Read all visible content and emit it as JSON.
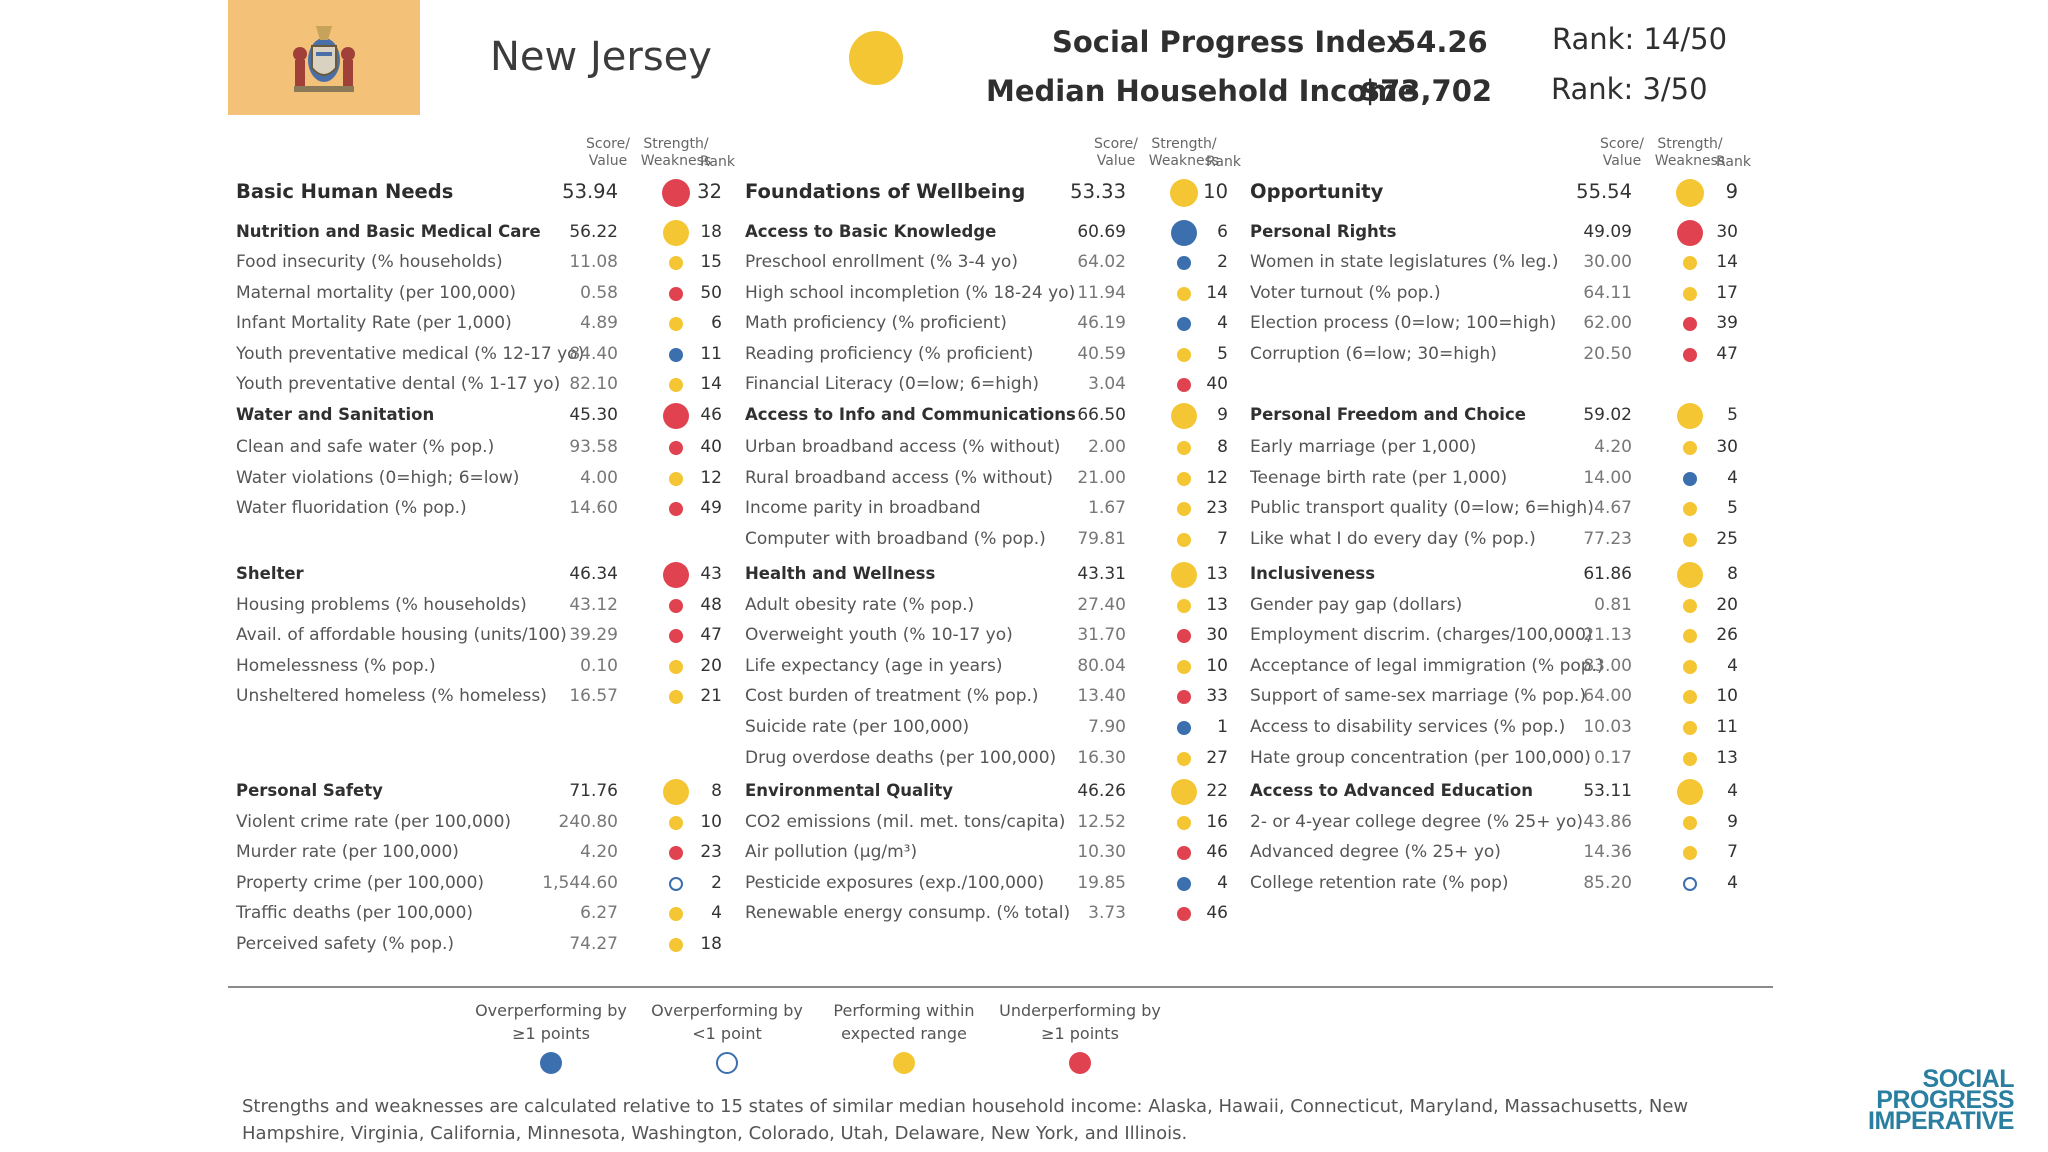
{
  "colors": {
    "blue": "#3c6fae",
    "yellow": "#f4c633",
    "red": "#e0424f",
    "hollow": "#3c6fae",
    "flag_bg": "#f3c178"
  },
  "header": {
    "state": "New Jersey",
    "summary_dot": "yellow",
    "spi_label": "Social Progress Index",
    "spi_value": "54.26",
    "spi_rank": "Rank: 14/50",
    "income_label": "Median Household Income",
    "income_value": "$73,702",
    "income_rank": "Rank: 3/50",
    "flag_icon": "new-jersey-seal-icon"
  },
  "column_headers": {
    "score": "Score/\nValue",
    "strength": "Strength/\nWeakness",
    "rank": "Rank"
  },
  "columns": [
    {
      "rows": [
        {
          "t": "dim",
          "label": "Basic Human Needs",
          "value": "53.94",
          "dot": "red",
          "rank": "32"
        },
        {
          "t": "cat",
          "label": "Nutrition and Basic Medical Care",
          "value": "56.22",
          "dot": "yellow",
          "rank": "18"
        },
        {
          "t": "ind",
          "label": "Food insecurity (% households)",
          "value": "11.08",
          "dot": "yellow",
          "rank": "15"
        },
        {
          "t": "ind",
          "label": "Maternal mortality (per 100,000)",
          "value": "0.58",
          "dot": "red",
          "rank": "50"
        },
        {
          "t": "ind",
          "label": "Infant Mortality Rate (per 1,000)",
          "value": "4.89",
          "dot": "yellow",
          "rank": "6"
        },
        {
          "t": "ind",
          "label": "Youth preventative medical (% 12-17 yo)",
          "value": "84.40",
          "dot": "blue",
          "rank": "11"
        },
        {
          "t": "ind",
          "label": "Youth preventative dental (% 1-17 yo)",
          "value": "82.10",
          "dot": "yellow",
          "rank": "14"
        },
        {
          "t": "cat",
          "label": "Water and Sanitation",
          "value": "45.30",
          "dot": "red",
          "rank": "46"
        },
        {
          "t": "ind",
          "label": "Clean and safe water (% pop.)",
          "value": "93.58",
          "dot": "red",
          "rank": "40"
        },
        {
          "t": "ind",
          "label": "Water violations (0=high; 6=low)",
          "value": "4.00",
          "dot": "yellow",
          "rank": "12"
        },
        {
          "t": "ind",
          "label": "Water fluoridation (% pop.)",
          "value": "14.60",
          "dot": "red",
          "rank": "49"
        },
        {
          "t": "cat",
          "label": "Shelter",
          "value": "46.34",
          "dot": "red",
          "rank": "43"
        },
        {
          "t": "ind",
          "label": "Housing problems (% households)",
          "value": "43.12",
          "dot": "red",
          "rank": "48"
        },
        {
          "t": "ind",
          "label": "Avail. of affordable housing (units/100)",
          "value": "39.29",
          "dot": "red",
          "rank": "47"
        },
        {
          "t": "ind",
          "label": "Homelessness (% pop.)",
          "value": "0.10",
          "dot": "yellow",
          "rank": "20"
        },
        {
          "t": "ind",
          "label": "Unsheltered homeless (% homeless)",
          "value": "16.57",
          "dot": "yellow",
          "rank": "21"
        },
        {
          "t": "cat",
          "label": "Personal Safety",
          "value": "71.76",
          "dot": "yellow",
          "rank": "8"
        },
        {
          "t": "ind",
          "label": "Violent crime rate (per 100,000)",
          "value": "240.80",
          "dot": "yellow",
          "rank": "10"
        },
        {
          "t": "ind",
          "label": "Murder rate (per 100,000)",
          "value": "4.20",
          "dot": "red",
          "rank": "23"
        },
        {
          "t": "ind",
          "label": "Property crime (per 100,000)",
          "value": "1,544.60",
          "dot": "hollow",
          "rank": "2"
        },
        {
          "t": "ind",
          "label": "Traffic deaths (per 100,000)",
          "value": "6.27",
          "dot": "yellow",
          "rank": "4"
        },
        {
          "t": "ind",
          "label": "Perceived safety (% pop.)",
          "value": "74.27",
          "dot": "yellow",
          "rank": "18"
        }
      ]
    },
    {
      "rows": [
        {
          "t": "dim",
          "label": "Foundations of Wellbeing",
          "value": "53.33",
          "dot": "yellow",
          "rank": "10"
        },
        {
          "t": "cat",
          "label": "Access to Basic Knowledge",
          "value": "60.69",
          "dot": "blue",
          "rank": "6"
        },
        {
          "t": "ind",
          "label": "Preschool enrollment (% 3-4 yo)",
          "value": "64.02",
          "dot": "blue",
          "rank": "2"
        },
        {
          "t": "ind",
          "label": "High school incompletion (% 18-24 yo)",
          "value": "11.94",
          "dot": "yellow",
          "rank": "14"
        },
        {
          "t": "ind",
          "label": "Math proficiency (% proficient)",
          "value": "46.19",
          "dot": "blue",
          "rank": "4"
        },
        {
          "t": "ind",
          "label": "Reading proficiency (% proficient)",
          "value": "40.59",
          "dot": "yellow",
          "rank": "5"
        },
        {
          "t": "ind",
          "label": "Financial Literacy (0=low; 6=high)",
          "value": "3.04",
          "dot": "red",
          "rank": "40"
        },
        {
          "t": "cat",
          "label": "Access to Info and Communications",
          "value": "66.50",
          "dot": "yellow",
          "rank": "9"
        },
        {
          "t": "ind",
          "label": "Urban broadband access (% without)",
          "value": "2.00",
          "dot": "yellow",
          "rank": "8"
        },
        {
          "t": "ind",
          "label": "Rural broadband access (% without)",
          "value": "21.00",
          "dot": "yellow",
          "rank": "12"
        },
        {
          "t": "ind",
          "label": "Income parity in broadband",
          "value": "1.67",
          "dot": "yellow",
          "rank": "23"
        },
        {
          "t": "ind",
          "label": "Computer with broadband (% pop.)",
          "value": "79.81",
          "dot": "yellow",
          "rank": "7"
        },
        {
          "t": "cat",
          "label": "Health and Wellness",
          "value": "43.31",
          "dot": "yellow",
          "rank": "13"
        },
        {
          "t": "ind",
          "label": "Adult obesity rate (% pop.)",
          "value": "27.40",
          "dot": "yellow",
          "rank": "13"
        },
        {
          "t": "ind",
          "label": "Overweight youth (% 10-17 yo)",
          "value": "31.70",
          "dot": "red",
          "rank": "30"
        },
        {
          "t": "ind",
          "label": "Life expectancy (age in years)",
          "value": "80.04",
          "dot": "yellow",
          "rank": "10"
        },
        {
          "t": "ind",
          "label": "Cost burden of treatment (% pop.)",
          "value": "13.40",
          "dot": "red",
          "rank": "33"
        },
        {
          "t": "ind",
          "label": "Suicide rate (per 100,000)",
          "value": "7.90",
          "dot": "blue",
          "rank": "1"
        },
        {
          "t": "ind",
          "label": "Drug overdose deaths (per 100,000)",
          "value": "16.30",
          "dot": "yellow",
          "rank": "27"
        },
        {
          "t": "cat",
          "label": "Environmental Quality",
          "value": "46.26",
          "dot": "yellow",
          "rank": "22"
        },
        {
          "t": "ind",
          "label": "CO2 emissions (mil. met. tons/capita)",
          "value": "12.52",
          "dot": "yellow",
          "rank": "16"
        },
        {
          "t": "ind",
          "label": "Air pollution (µg/m³)",
          "value": "10.30",
          "dot": "red",
          "rank": "46"
        },
        {
          "t": "ind",
          "label": "Pesticide exposures (exp./100,000)",
          "value": "19.85",
          "dot": "blue",
          "rank": "4"
        },
        {
          "t": "ind",
          "label": "Renewable energy consump. (% total)",
          "value": "3.73",
          "dot": "red",
          "rank": "46"
        }
      ]
    },
    {
      "rows": [
        {
          "t": "dim",
          "label": "Opportunity",
          "value": "55.54",
          "dot": "yellow",
          "rank": "9"
        },
        {
          "t": "cat",
          "label": "Personal Rights",
          "value": "49.09",
          "dot": "red",
          "rank": "30"
        },
        {
          "t": "ind",
          "label": "Women in state legislatures (% leg.)",
          "value": "30.00",
          "dot": "yellow",
          "rank": "14"
        },
        {
          "t": "ind",
          "label": "Voter turnout (% pop.)",
          "value": "64.11",
          "dot": "yellow",
          "rank": "17"
        },
        {
          "t": "ind",
          "label": "Election process (0=low; 100=high)",
          "value": "62.00",
          "dot": "red",
          "rank": "39"
        },
        {
          "t": "ind",
          "label": "Corruption (6=low; 30=high)",
          "value": "20.50",
          "dot": "red",
          "rank": "47"
        },
        {
          "t": "cat",
          "label": "Personal Freedom and Choice",
          "value": "59.02",
          "dot": "yellow",
          "rank": "5"
        },
        {
          "t": "ind",
          "label": "Early marriage (per 1,000)",
          "value": "4.20",
          "dot": "yellow",
          "rank": "30"
        },
        {
          "t": "ind",
          "label": "Teenage birth rate (per 1,000)",
          "value": "14.00",
          "dot": "blue",
          "rank": "4"
        },
        {
          "t": "ind",
          "label": "Public transport quality (0=low; 6=high)",
          "value": "4.67",
          "dot": "yellow",
          "rank": "5"
        },
        {
          "t": "ind",
          "label": "Like what I do every day (% pop.)",
          "value": "77.23",
          "dot": "yellow",
          "rank": "25"
        },
        {
          "t": "cat",
          "label": "Inclusiveness",
          "value": "61.86",
          "dot": "yellow",
          "rank": "8"
        },
        {
          "t": "ind",
          "label": "Gender pay gap (dollars)",
          "value": "0.81",
          "dot": "yellow",
          "rank": "20"
        },
        {
          "t": "ind",
          "label": "Employment discrim. (charges/100,000)",
          "value": "21.13",
          "dot": "yellow",
          "rank": "26"
        },
        {
          "t": "ind",
          "label": "Acceptance of legal immigration (% pop.)",
          "value": "83.00",
          "dot": "yellow",
          "rank": "4"
        },
        {
          "t": "ind",
          "label": "Support of same-sex marriage (% pop.)",
          "value": "64.00",
          "dot": "yellow",
          "rank": "10"
        },
        {
          "t": "ind",
          "label": "Access to disability services (% pop.)",
          "value": "10.03",
          "dot": "yellow",
          "rank": "11"
        },
        {
          "t": "ind",
          "label": "Hate group concentration (per 100,000)",
          "value": "0.17",
          "dot": "yellow",
          "rank": "13"
        },
        {
          "t": "cat",
          "label": "Access to Advanced Education",
          "value": "53.11",
          "dot": "yellow",
          "rank": "4"
        },
        {
          "t": "ind",
          "label": "2- or 4-year college degree (% 25+ yo)",
          "value": "43.86",
          "dot": "yellow",
          "rank": "9"
        },
        {
          "t": "ind",
          "label": "Advanced degree (% 25+ yo)",
          "value": "14.36",
          "dot": "yellow",
          "rank": "7"
        },
        {
          "t": "ind",
          "label": "College retention rate (% pop)",
          "value": "85.20",
          "dot": "hollow",
          "rank": "4"
        }
      ]
    }
  ],
  "legend": [
    {
      "label": "Overperforming by\n≥1 points",
      "dot": "blue"
    },
    {
      "label": "Overperforming by\n<1 point",
      "dot": "hollow"
    },
    {
      "label": "Performing within\nexpected range",
      "dot": "yellow"
    },
    {
      "label": "Underperforming by\n≥1 points",
      "dot": "red"
    }
  ],
  "footnote": "Strengths and weaknesses are calculated relative to 15 states of similar median household income: Alaska, Hawaii, Connecticut, Maryland, Massachusetts, New Hampshire, Virginia, California, Minnesota, Washington, Colorado, Utah, Delaware, New York, and Illinois.",
  "logo": [
    "SOCIAL",
    "PROGRESS",
    "IMPERATIVE"
  ]
}
